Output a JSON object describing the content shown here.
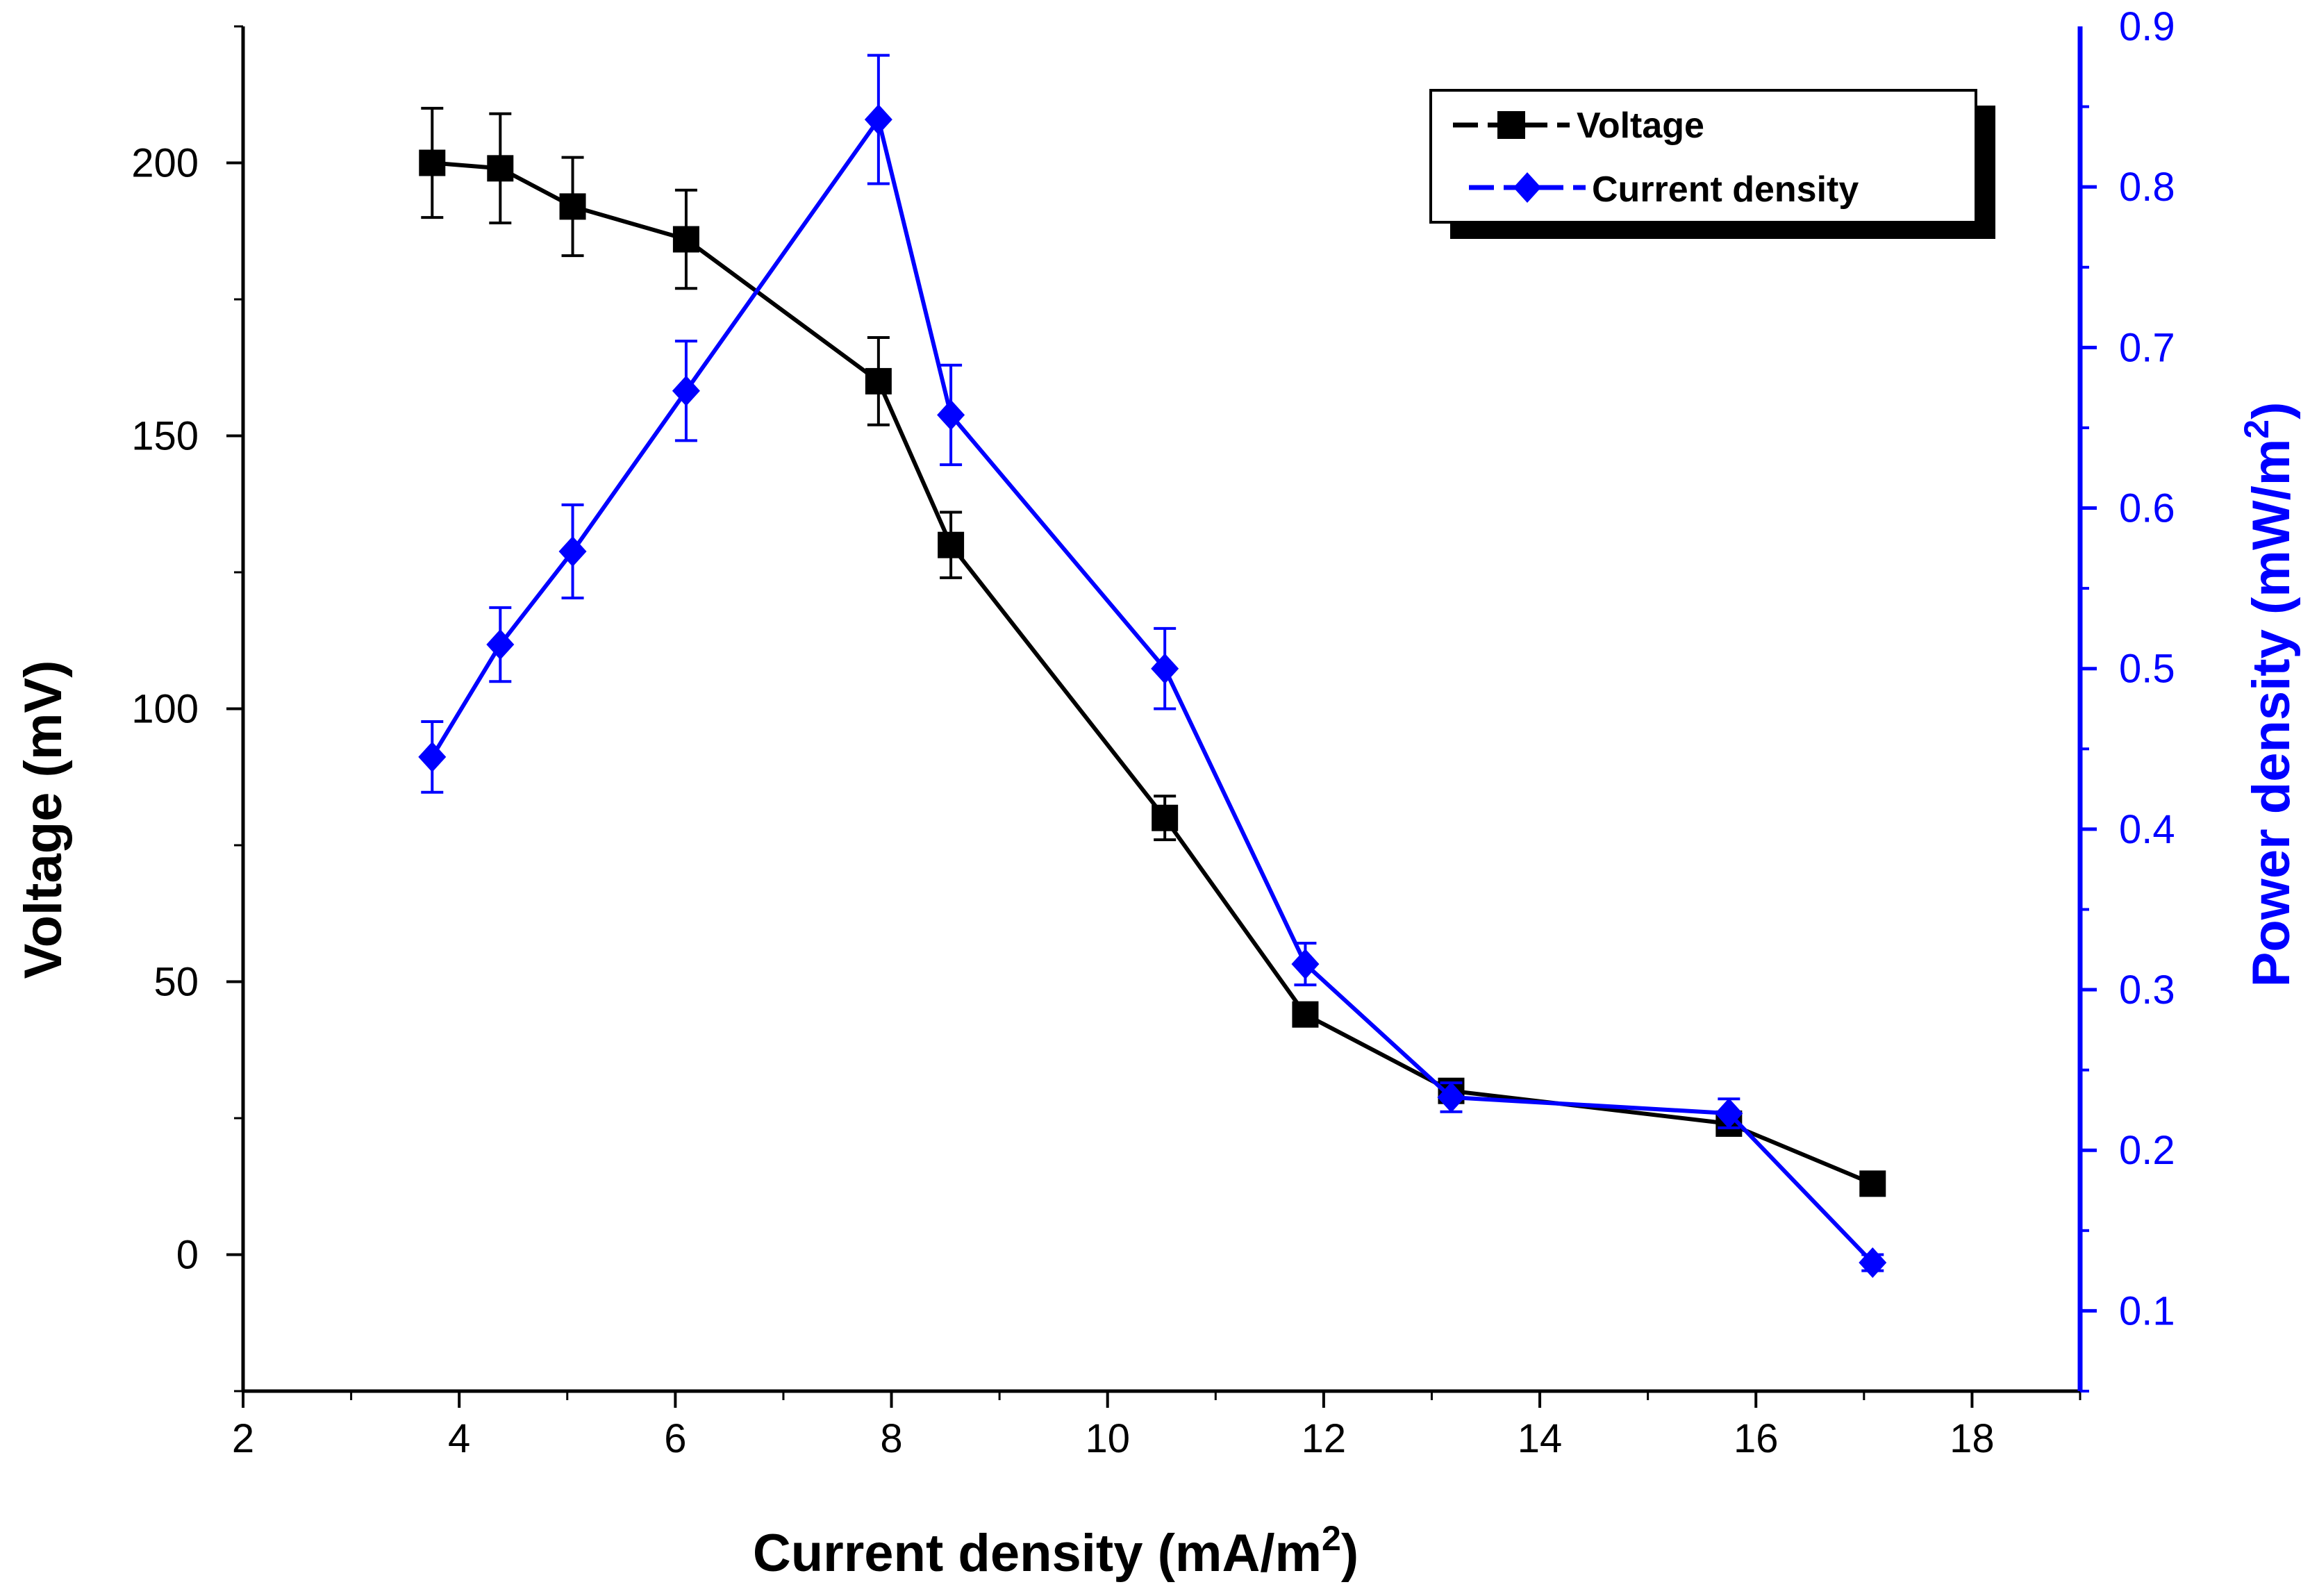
{
  "chart_data": {
    "type": "line",
    "title": "",
    "xlabel": "Current density (mA/m",
    "xlabel_sup": "2",
    "xlabel_tail": ")",
    "ylabel": "Voltage (mV)",
    "y2label": "Power density (mW/m",
    "y2label_sup": "2",
    "y2label_tail": ")",
    "xlim": [
      2,
      19
    ],
    "ylim": [
      -25,
      225
    ],
    "y2lim": [
      0.05,
      0.9
    ],
    "xticks": [
      2,
      4,
      6,
      8,
      10,
      12,
      14,
      16,
      18
    ],
    "yticks": [
      0,
      50,
      100,
      150,
      200
    ],
    "y2ticks": [
      "0.1",
      "0.2",
      "0.3",
      "0.4",
      "0.5",
      "0.6",
      "0.7",
      "0.8",
      "0.9"
    ],
    "grid": false,
    "legend_position": "top-right",
    "series": [
      {
        "name": "Voltage",
        "axis": "left",
        "color": "#000000",
        "marker": "square",
        "x": [
          3.75,
          4.38,
          5.05,
          6.1,
          7.88,
          8.55,
          10.53,
          11.83,
          13.18,
          15.75,
          17.08
        ],
        "y": [
          200,
          199,
          192,
          186,
          160,
          130,
          80,
          44,
          30,
          24,
          13
        ],
        "err": [
          10,
          10,
          9,
          9,
          8,
          6,
          4,
          2,
          0,
          0,
          0
        ]
      },
      {
        "name": "Current density",
        "axis": "right",
        "color": "#0000ff",
        "marker": "diamond",
        "x": [
          3.75,
          4.38,
          5.05,
          6.1,
          7.88,
          8.55,
          10.53,
          11.83,
          13.18,
          15.75,
          17.08
        ],
        "y": [
          0.445,
          0.515,
          0.573,
          0.673,
          0.842,
          0.658,
          0.5,
          0.316,
          0.233,
          0.223,
          0.13
        ],
        "err": [
          0.022,
          0.023,
          0.029,
          0.031,
          0.04,
          0.031,
          0.025,
          0.013,
          0.009,
          0.009,
          0.005
        ]
      }
    ]
  }
}
